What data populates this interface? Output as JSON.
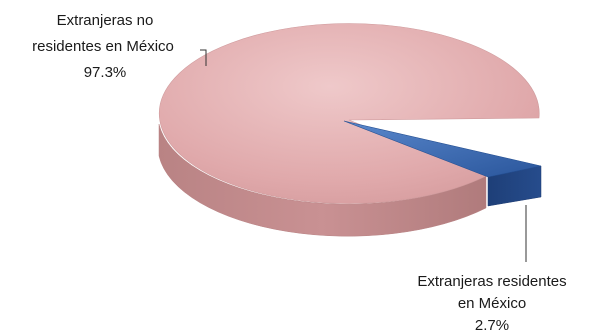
{
  "chart_data": {
    "type": "pie",
    "style": "3d",
    "slices": [
      {
        "label": "Extranjeras no residentes en México",
        "value": 97.3,
        "value_text": "97.3%",
        "color": "#e2aeb0"
      },
      {
        "label": "Extranjeras residentes en México",
        "value": 2.7,
        "value_text": "2.7%",
        "color": "#2f5fa8"
      }
    ],
    "labels": {
      "big_line1": "Extranjeras no",
      "big_line2": "residentes en México",
      "big_pct": "97.3%",
      "small_line1": "Extranjeras residentes",
      "small_line2": "en México",
      "small_pct": "2.7%"
    },
    "legend": "none"
  }
}
